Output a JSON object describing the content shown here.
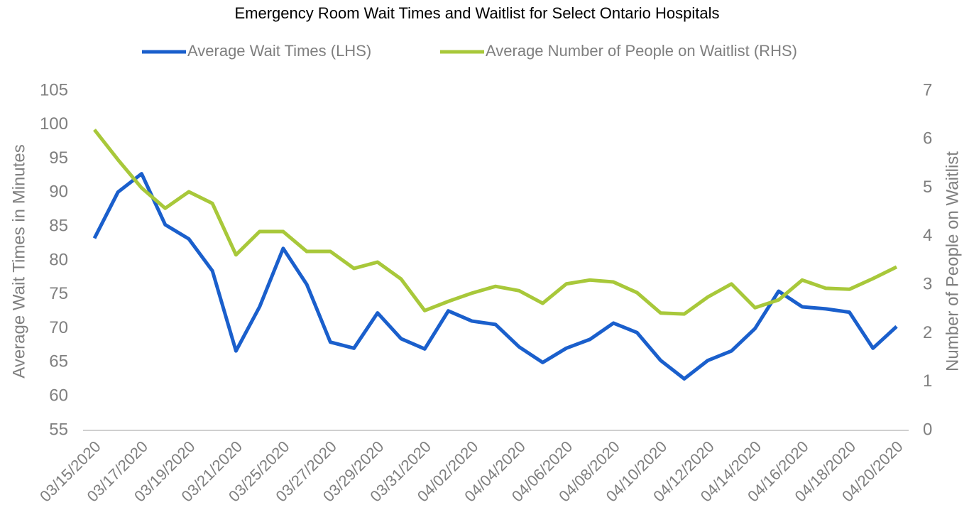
{
  "chart_data": {
    "type": "line",
    "title": "Emergency Room Wait Times and Waitlist for Select Ontario Hospitals",
    "y_label": "Average Wait Times in Minutes",
    "y2_label": "Number of People on Waitlist",
    "categories": [
      "03/15/2020",
      null,
      "03/17/2020",
      null,
      "03/19/2020",
      null,
      "03/21/2020",
      null,
      "03/25/2020",
      null,
      "03/27/2020",
      null,
      "03/29/2020",
      null,
      "03/31/2020",
      null,
      "04/02/2020",
      null,
      "04/04/2020",
      null,
      "04/06/2020",
      null,
      "04/08/2020",
      null,
      "04/10/2020",
      null,
      "04/12/2020",
      null,
      "04/14/2020",
      null,
      "04/16/2020",
      null,
      "04/18/2020",
      null,
      "04/20/2020"
    ],
    "series": [
      {
        "name": "Average Wait Times (LHS)",
        "color": "#1a5fcc",
        "axis": "y",
        "values": [
          83.3,
          90.1,
          92.8,
          85.3,
          83.2,
          78.5,
          66.7,
          73.2,
          81.8,
          76.5,
          68,
          67.1,
          72.3,
          68.5,
          67,
          72.6,
          71.1,
          70.6,
          67.3,
          65,
          67.1,
          68.4,
          70.8,
          69.4,
          65.3,
          62.6,
          65.3,
          66.7,
          70,
          75.5,
          73.2,
          72.9,
          72.4,
          67.1,
          70.3
        ]
      },
      {
        "name": "Average Number of People on Waitlist (RHS)",
        "color": "#a8c83a",
        "axis": "y2",
        "values": [
          6.2,
          5.58,
          5.0,
          4.58,
          4.92,
          4.68,
          3.62,
          4.1,
          4.1,
          3.69,
          3.69,
          3.34,
          3.47,
          3.12,
          2.47,
          2.66,
          2.83,
          2.97,
          2.88,
          2.62,
          3.02,
          3.1,
          3.06,
          2.84,
          2.42,
          2.4,
          2.75,
          3.02,
          2.53,
          2.69,
          3.1,
          2.93,
          2.91,
          3.13,
          3.37
        ]
      }
    ],
    "ylim": [
      55,
      105
    ],
    "yticks": [
      55,
      60,
      65,
      70,
      75,
      80,
      85,
      90,
      95,
      100,
      105
    ],
    "y2lim": [
      0,
      7
    ],
    "y2ticks": [
      0,
      1,
      2,
      3,
      4,
      5,
      6,
      7
    ],
    "legend": "top",
    "grid": false
  }
}
